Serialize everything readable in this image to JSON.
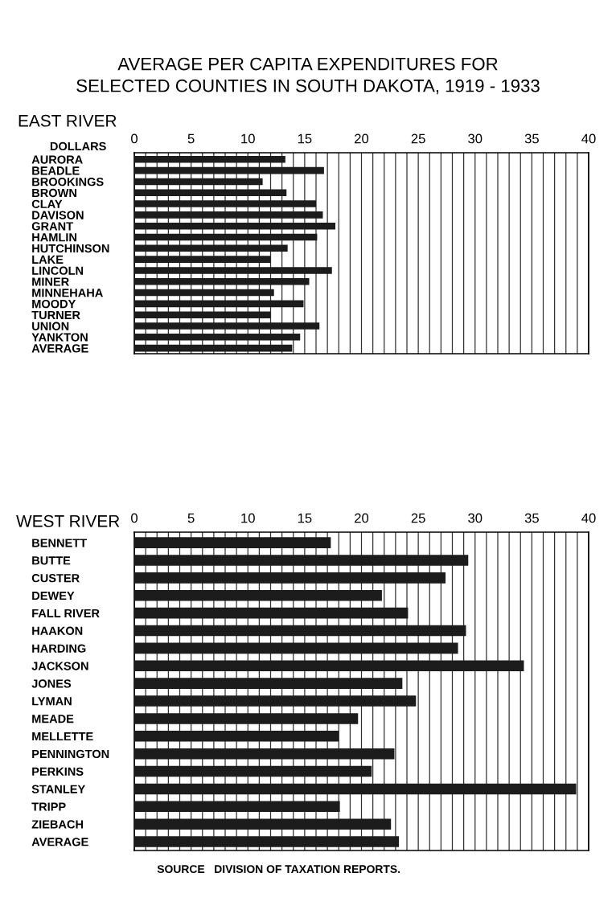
{
  "chart_data": [
    {
      "type": "bar",
      "orientation": "horizontal",
      "title": "AVERAGE PER CAPITA EXPENDITURES FOR\nSELECTED COUNTIES IN SOUTH DAKOTA, 1919 - 1933",
      "subtitle": "EAST RIVER",
      "xlabel": "DOLLARS",
      "categories": [
        "AURORA",
        "BEADLE",
        "BROOKINGS",
        "BROWN",
        "CLAY",
        "DAVISON",
        "GRANT",
        "HAMLIN",
        "HUTCHINSON",
        "LAKE",
        "LINCOLN",
        "MINER",
        "MINNEHAHA",
        "MOODY",
        "TURNER",
        "UNION",
        "YANKTON",
        "AVERAGE"
      ],
      "values": [
        13.3,
        16.7,
        11.3,
        13.4,
        16.0,
        16.6,
        17.7,
        16.1,
        13.5,
        12.0,
        17.4,
        15.4,
        12.3,
        14.9,
        12.0,
        16.3,
        14.6,
        13.9
      ],
      "color": "#1c1c1c",
      "xlim": [
        0,
        40
      ],
      "xticks": [
        0,
        {
          "value": 1,
          "label": null
        },
        {
          "value": 2,
          "label": null
        },
        {
          "value": 3,
          "label": null
        },
        {
          "value": 4,
          "label": null
        },
        5,
        {
          "value": 6,
          "label": null
        },
        {
          "value": 7,
          "label": null
        },
        {
          "value": 8,
          "label": null
        },
        {
          "value": 9,
          "label": null
        },
        10,
        {
          "value": 11,
          "label": null
        },
        {
          "value": 12,
          "label": null
        },
        {
          "value": 13,
          "label": null
        },
        {
          "value": 14,
          "label": null
        },
        15,
        {
          "value": 16,
          "label": null
        },
        {
          "value": 17,
          "label": null
        },
        {
          "value": 18,
          "label": null
        },
        {
          "value": 19,
          "label": null
        },
        20,
        {
          "value": 21,
          "label": null
        },
        {
          "value": 22,
          "label": null
        },
        {
          "value": 23,
          "label": null
        },
        {
          "value": 24,
          "label": null
        },
        25,
        {
          "value": 26,
          "label": null
        },
        {
          "value": 27,
          "label": null
        },
        {
          "value": 28,
          "label": null
        },
        {
          "value": 29,
          "label": null
        },
        30,
        {
          "value": 31,
          "label": null
        },
        {
          "value": 32,
          "label": null
        },
        {
          "value": 33,
          "label": null
        },
        {
          "value": 34,
          "label": null
        },
        35,
        {
          "value": 36,
          "label": null
        },
        {
          "value": 37,
          "label": null
        },
        {
          "value": 38,
          "label": null
        },
        {
          "value": 39,
          "label": null
        },
        40
      ],
      "grid": "x"
    },
    {
      "type": "bar",
      "orientation": "horizontal",
      "title": "WEST RIVER",
      "categories": [
        "BENNETT",
        "BUTTE",
        "CUSTER",
        "DEWEY",
        "FALL RIVER",
        "HAAKON",
        "HARDING",
        "JACKSON",
        "JONES",
        "LYMAN",
        "MEADE",
        "MELLETTE",
        "PENNINGTON",
        "PERKINS",
        "STANLEY",
        "TRIPP",
        "ZIEBACH",
        "AVERAGE"
      ],
      "values": [
        17.3,
        29.4,
        27.4,
        21.8,
        24.1,
        29.2,
        28.5,
        34.3,
        23.6,
        24.8,
        19.7,
        18.0,
        22.9,
        20.9,
        38.9,
        18.1,
        22.6,
        23.3
      ],
      "color": "#1c1c1c",
      "xlim": [
        0,
        40
      ],
      "xticks": [
        0,
        {
          "value": 1,
          "label": null
        },
        {
          "value": 2,
          "label": null
        },
        {
          "value": 3,
          "label": null
        },
        {
          "value": 4,
          "label": null
        },
        5,
        {
          "value": 6,
          "label": null
        },
        {
          "value": 7,
          "label": null
        },
        {
          "value": 8,
          "label": null
        },
        {
          "value": 9,
          "label": null
        },
        10,
        {
          "value": 11,
          "label": null
        },
        {
          "value": 12,
          "label": null
        },
        {
          "value": 13,
          "label": null
        },
        {
          "value": 14,
          "label": null
        },
        15,
        {
          "value": 16,
          "label": null
        },
        {
          "value": 17,
          "label": null
        },
        {
          "value": 18,
          "label": null
        },
        {
          "value": 19,
          "label": null
        },
        20,
        {
          "value": 21,
          "label": null
        },
        {
          "value": 22,
          "label": null
        },
        {
          "value": 23,
          "label": null
        },
        {
          "value": 24,
          "label": null
        },
        25,
        {
          "value": 26,
          "label": null
        },
        {
          "value": 27,
          "label": null
        },
        {
          "value": 28,
          "label": null
        },
        {
          "value": 29,
          "label": null
        },
        30,
        {
          "value": 31,
          "label": null
        },
        {
          "value": 32,
          "label": null
        },
        {
          "value": 33,
          "label": null
        },
        {
          "value": 34,
          "label": null
        },
        35,
        {
          "value": 36,
          "label": null
        },
        {
          "value": 37,
          "label": null
        },
        {
          "value": 38,
          "label": null
        },
        {
          "value": 39,
          "label": null
        },
        40
      ],
      "grid": "x",
      "annotations": [
        "SOURCE   DIVISION OF TAXATION REPORTS."
      ]
    }
  ]
}
